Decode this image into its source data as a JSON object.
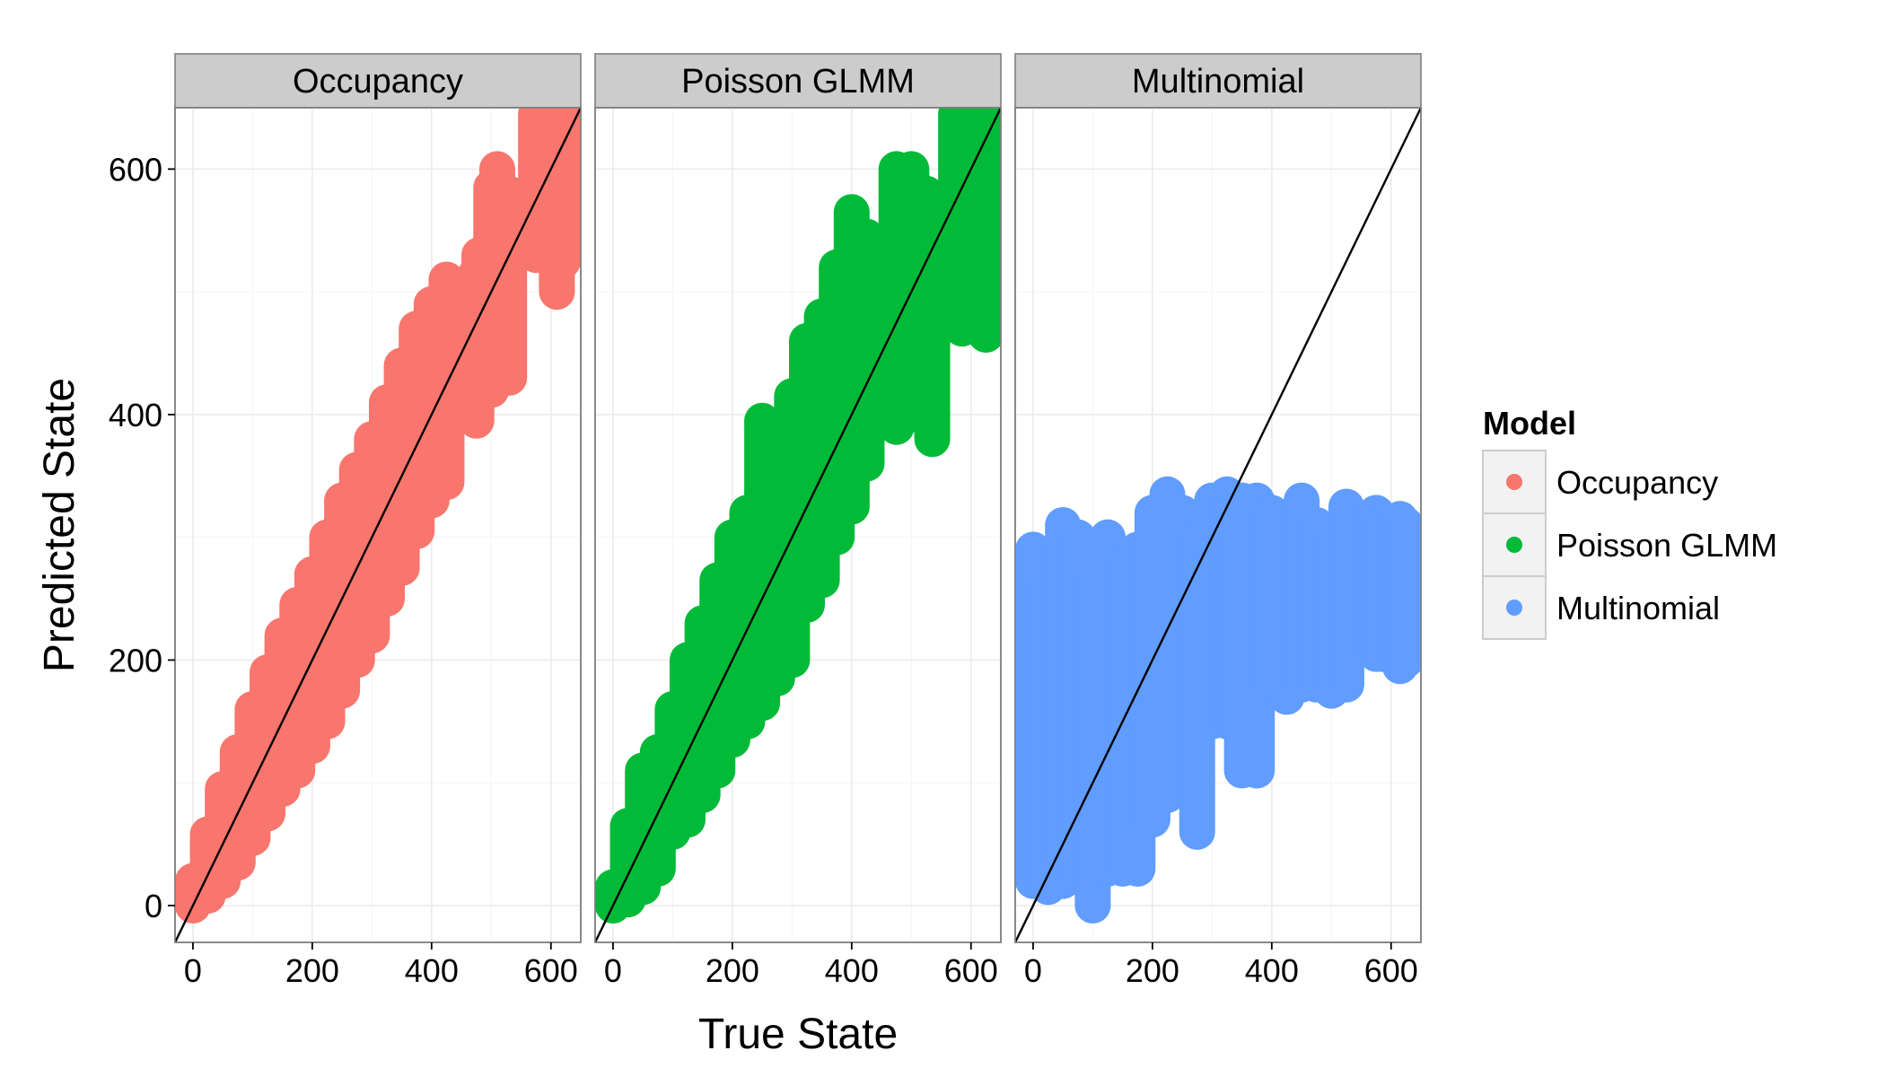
{
  "chart_data": {
    "type": "scatter",
    "xlabel": "True State",
    "ylabel": "Predicted State",
    "xlim": [
      -30,
      650
    ],
    "ylim": [
      -30,
      650
    ],
    "x_ticks": [
      0,
      200,
      400,
      600
    ],
    "y_ticks": [
      0,
      200,
      400,
      600
    ],
    "x_tick_labels": [
      "0",
      "200",
      "400",
      "600"
    ],
    "y_tick_labels": [
      "0",
      "200",
      "400",
      "600"
    ],
    "grid": true,
    "reference_line": {
      "slope": 1,
      "intercept": 0,
      "color": "#000000"
    },
    "legend": {
      "title": "Model",
      "position": "right",
      "entries": [
        {
          "label": "Occupancy",
          "color": "#F8766D"
        },
        {
          "label": "Poisson GLMM",
          "color": "#00BA38"
        },
        {
          "label": "Multinomial",
          "color": "#619CFF"
        }
      ]
    },
    "panels": [
      {
        "strip": "Occupancy",
        "color": "#F8766D",
        "bands": [
          {
            "x": 0,
            "ymin": 0,
            "ymax": 20
          },
          {
            "x": 25,
            "ymin": 8,
            "ymax": 58
          },
          {
            "x": 50,
            "ymin": 20,
            "ymax": 95
          },
          {
            "x": 75,
            "ymin": 35,
            "ymax": 125
          },
          {
            "x": 100,
            "ymin": 55,
            "ymax": 160
          },
          {
            "x": 125,
            "ymin": 75,
            "ymax": 190
          },
          {
            "x": 150,
            "ymin": 95,
            "ymax": 220
          },
          {
            "x": 175,
            "ymin": 110,
            "ymax": 245
          },
          {
            "x": 200,
            "ymin": 130,
            "ymax": 270
          },
          {
            "x": 225,
            "ymin": 150,
            "ymax": 300
          },
          {
            "x": 250,
            "ymin": 175,
            "ymax": 330
          },
          {
            "x": 275,
            "ymin": 200,
            "ymax": 355
          },
          {
            "x": 300,
            "ymin": 220,
            "ymax": 380
          },
          {
            "x": 325,
            "ymin": 250,
            "ymax": 410
          },
          {
            "x": 350,
            "ymin": 275,
            "ymax": 440
          },
          {
            "x": 375,
            "ymin": 305,
            "ymax": 470
          },
          {
            "x": 400,
            "ymin": 330,
            "ymax": 490
          },
          {
            "x": 425,
            "ymin": 345,
            "ymax": 510
          },
          {
            "x": 475,
            "ymin": 395,
            "ymax": 515
          },
          {
            "x": 480,
            "ymin": 425,
            "ymax": 530
          },
          {
            "x": 500,
            "ymin": 420,
            "ymax": 585
          },
          {
            "x": 510,
            "ymin": 450,
            "ymax": 600
          },
          {
            "x": 530,
            "ymin": 430,
            "ymax": 580
          },
          {
            "x": 575,
            "ymin": 530,
            "ymax": 645
          },
          {
            "x": 585,
            "ymin": 540,
            "ymax": 640
          },
          {
            "x": 610,
            "ymin": 500,
            "ymax": 685
          },
          {
            "x": 620,
            "ymin": 525,
            "ymax": 680
          }
        ]
      },
      {
        "strip": "Poisson GLMM",
        "color": "#00BA38",
        "bands": [
          {
            "x": 0,
            "ymin": 0,
            "ymax": 15
          },
          {
            "x": 25,
            "ymin": 5,
            "ymax": 65
          },
          {
            "x": 50,
            "ymin": 15,
            "ymax": 110
          },
          {
            "x": 75,
            "ymin": 30,
            "ymax": 125
          },
          {
            "x": 100,
            "ymin": 60,
            "ymax": 160
          },
          {
            "x": 125,
            "ymin": 70,
            "ymax": 200
          },
          {
            "x": 150,
            "ymin": 90,
            "ymax": 230
          },
          {
            "x": 175,
            "ymin": 110,
            "ymax": 265
          },
          {
            "x": 200,
            "ymin": 135,
            "ymax": 300
          },
          {
            "x": 225,
            "ymin": 150,
            "ymax": 320
          },
          {
            "x": 250,
            "ymin": 165,
            "ymax": 395
          },
          {
            "x": 275,
            "ymin": 185,
            "ymax": 380
          },
          {
            "x": 300,
            "ymin": 200,
            "ymax": 415
          },
          {
            "x": 325,
            "ymin": 245,
            "ymax": 460
          },
          {
            "x": 350,
            "ymin": 265,
            "ymax": 480
          },
          {
            "x": 375,
            "ymin": 300,
            "ymax": 520
          },
          {
            "x": 400,
            "ymin": 325,
            "ymax": 565
          },
          {
            "x": 425,
            "ymin": 360,
            "ymax": 545
          },
          {
            "x": 450,
            "ymin": 420,
            "ymax": 520
          },
          {
            "x": 475,
            "ymin": 390,
            "ymax": 600
          },
          {
            "x": 500,
            "ymin": 400,
            "ymax": 600
          },
          {
            "x": 525,
            "ymin": 410,
            "ymax": 580
          },
          {
            "x": 535,
            "ymin": 380,
            "ymax": 555
          },
          {
            "x": 575,
            "ymin": 475,
            "ymax": 645
          },
          {
            "x": 585,
            "ymin": 470,
            "ymax": 645
          },
          {
            "x": 615,
            "ymin": 470,
            "ymax": 640
          },
          {
            "x": 625,
            "ymin": 465,
            "ymax": 645
          }
        ]
      },
      {
        "strip": "Multinomial",
        "color": "#619CFF",
        "bands": [
          {
            "x": 0,
            "ymin": 20,
            "ymax": 290
          },
          {
            "x": 25,
            "ymin": 15,
            "ymax": 260
          },
          {
            "x": 50,
            "ymin": 20,
            "ymax": 310
          },
          {
            "x": 75,
            "ymin": 25,
            "ymax": 300
          },
          {
            "x": 100,
            "ymin": 0,
            "ymax": 270
          },
          {
            "x": 125,
            "ymin": 30,
            "ymax": 300
          },
          {
            "x": 150,
            "ymin": 30,
            "ymax": 280
          },
          {
            "x": 175,
            "ymin": 30,
            "ymax": 290
          },
          {
            "x": 200,
            "ymin": 70,
            "ymax": 320
          },
          {
            "x": 225,
            "ymin": 90,
            "ymax": 335
          },
          {
            "x": 250,
            "ymin": 110,
            "ymax": 320
          },
          {
            "x": 275,
            "ymin": 60,
            "ymax": 300
          },
          {
            "x": 300,
            "ymin": 150,
            "ymax": 330
          },
          {
            "x": 325,
            "ymin": 150,
            "ymax": 335
          },
          {
            "x": 350,
            "ymin": 110,
            "ymax": 330
          },
          {
            "x": 375,
            "ymin": 110,
            "ymax": 330
          },
          {
            "x": 400,
            "ymin": 180,
            "ymax": 320
          },
          {
            "x": 425,
            "ymin": 170,
            "ymax": 315
          },
          {
            "x": 450,
            "ymin": 180,
            "ymax": 330
          },
          {
            "x": 475,
            "ymin": 180,
            "ymax": 310
          },
          {
            "x": 500,
            "ymin": 175,
            "ymax": 300
          },
          {
            "x": 525,
            "ymin": 180,
            "ymax": 325
          },
          {
            "x": 575,
            "ymin": 205,
            "ymax": 320
          },
          {
            "x": 585,
            "ymin": 205,
            "ymax": 310
          },
          {
            "x": 615,
            "ymin": 195,
            "ymax": 315
          },
          {
            "x": 625,
            "ymin": 200,
            "ymax": 310
          }
        ]
      }
    ]
  }
}
